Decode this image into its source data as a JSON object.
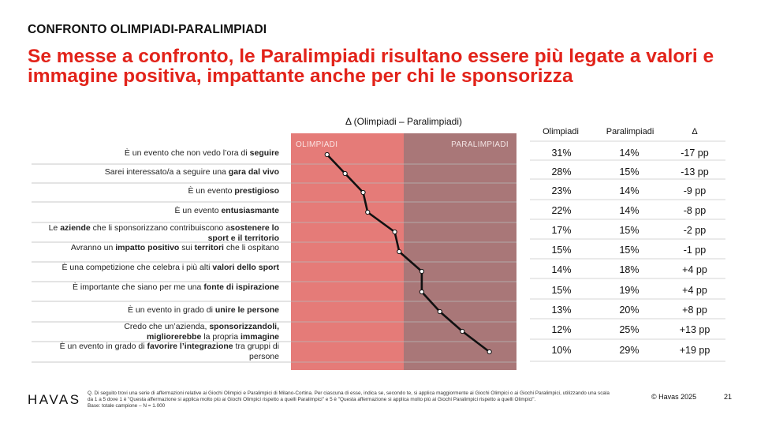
{
  "kicker": "CONFRONTO OLIMPIADI-PARALIMPIADI",
  "headline": "Se messe a confronto, le Paralimpiadi risultano essere più legate a valori e immagine positiva, impattante anche per chi le sponsorizza",
  "chart_data": {
    "type": "line",
    "title": "Δ  (Olimpiadi – Paralimpiadi)",
    "zone_labels": [
      "OLIMPIADI",
      "PARALIMPIADI"
    ],
    "xlim": [
      -25,
      25
    ],
    "categories": [
      "È un evento che non vedo l'ora di seguire",
      "Sarei interessato/a a seguire una gara dal vivo",
      "È un evento prestigioso",
      "È un evento entusiasmante",
      "Le aziende che li sponsorizzano contribuiscono a sostenere lo sport e il territorio",
      "Avranno un impatto positivo sui territori che li ospitano",
      "È una competizione che celebra i più alti valori dello sport",
      "È importante che siano per me una fonte di ispirazione",
      "È un evento in grado di unire le persone",
      "Credo che un'azienda, sponsorizzandoli, migliorerebbe la propria immagine",
      "È un evento in grado di favorire l'integrazione tra gruppi di persone"
    ],
    "values": [
      -17,
      -13,
      -9,
      -8,
      -2,
      -1,
      4,
      4,
      8,
      13,
      19
    ],
    "line_color": "#111111",
    "zone_colors": {
      "olimpiadi": "#e57b78",
      "paralimpiadi": "#a97778"
    }
  },
  "labels": [
    {
      "l1": "È un evento che non vedo l’ora di ",
      "b1": "seguire"
    },
    {
      "l1": "Sarei interessato/a a seguire una ",
      "b1": "gara dal vivo"
    },
    {
      "l1": "È un evento ",
      "b1": "prestigioso"
    },
    {
      "l1": "È un evento ",
      "b1": "entusiasmante"
    },
    {
      "l1": "Le ",
      "b1": "aziende",
      "l2": " che li sponsorizzano contribuiscono a",
      "b2": "sostenere lo sport e il territorio"
    },
    {
      "l1": "Avranno un ",
      "b1": "impatto positivo",
      "l2": " sui ",
      "b2": "territori",
      "l3": " che li ospitano"
    },
    {
      "l1": "È una competizione che celebra i più alti ",
      "b1": "valori dello sport"
    },
    {
      "l1": "È importante che siano per me una ",
      "b1": "fonte di ispirazione"
    },
    {
      "l1": "È un evento in grado di ",
      "b1": "unire le persone"
    },
    {
      "l1": "Credo che un’azienda, ",
      "b1": "sponsorizzandoli,",
      "b2": "migliorerebbe",
      "l2": " la propria ",
      "b3": "immagine"
    },
    {
      "l1": "È un evento in grado di ",
      "b1": "favorire l’integrazione",
      "l2": " tra gruppi di persone"
    }
  ],
  "table": {
    "headers": [
      "Olimpiadi",
      "Paralimpiadi",
      "Δ"
    ],
    "rows": [
      [
        "31%",
        "14%",
        "-17 pp"
      ],
      [
        "28%",
        "15%",
        "-13 pp"
      ],
      [
        "23%",
        "14%",
        "-9 pp"
      ],
      [
        "22%",
        "14%",
        "-8 pp"
      ],
      [
        "17%",
        "15%",
        "-2 pp"
      ],
      [
        "15%",
        "15%",
        "-1 pp"
      ],
      [
        "14%",
        "18%",
        "+4 pp"
      ],
      [
        "15%",
        "19%",
        "+4 pp"
      ],
      [
        "13%",
        "20%",
        "+8 pp"
      ],
      [
        "12%",
        "25%",
        "+13 pp"
      ],
      [
        "10%",
        "29%",
        "+19 pp"
      ]
    ]
  },
  "footer": {
    "logo": "HAVAS",
    "note": "Q. Di seguito trovi una serie di affermazioni relative ai Giochi Olimpici e Paralimpici di Milano-Cortina. Per ciascuna di esse, indica se, secondo te, si applica maggiormente ai Giochi Olimpici o ai Giochi Paralimpici, utilizzando una scala da 1 a 5 dove 1 è \"Questa affermazione si applica molto più ai Giochi Olimpici rispetto a quelli Paralimpici\" e 5 è \"Questa affermazione si applica molto più ai Giochi Paralimpici rispetto a quelli Olimpici\".",
    "base": "Base: totale campione – N = 1.000",
    "copyright": "© Havas 2025",
    "page": "21"
  }
}
